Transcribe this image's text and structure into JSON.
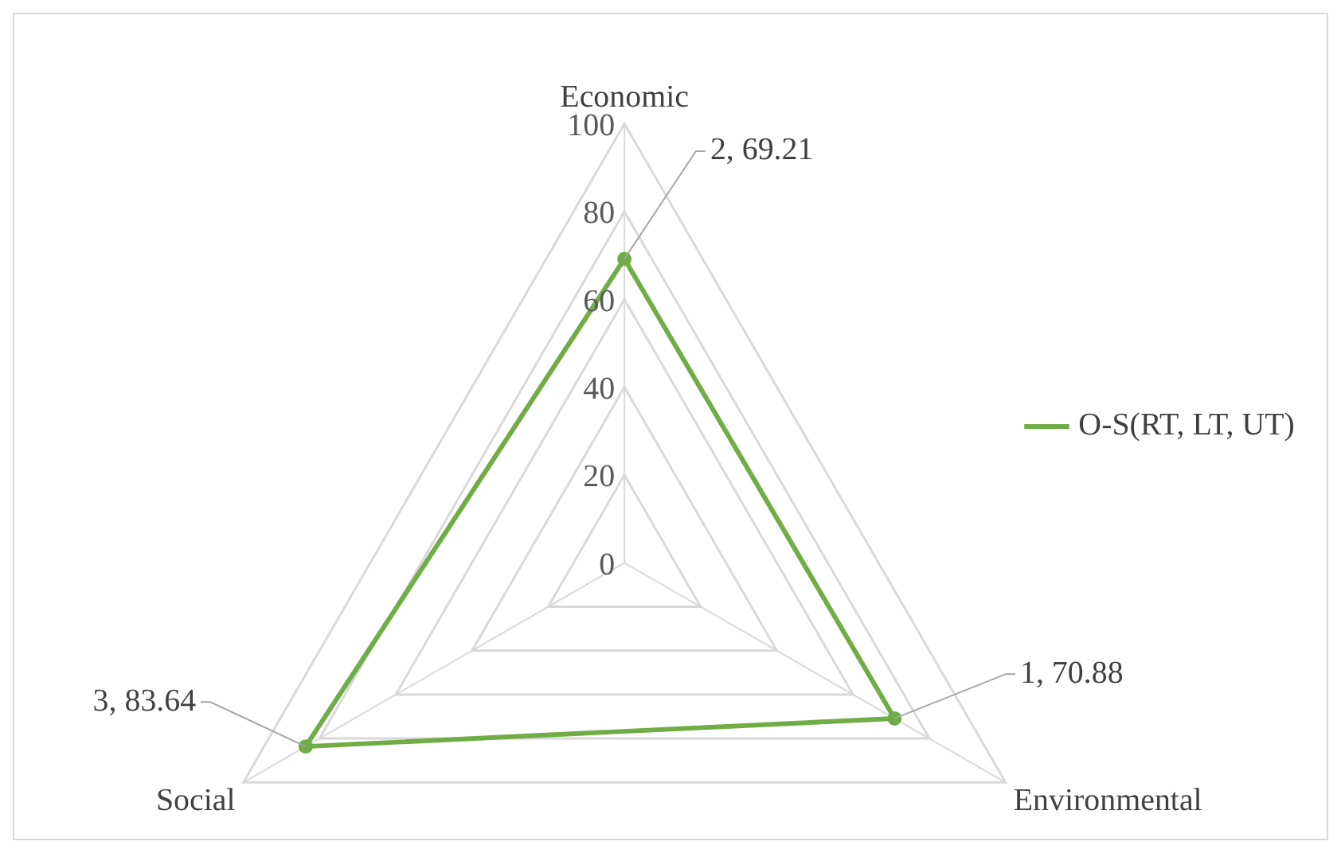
{
  "chart_data": {
    "type": "radar",
    "categories": [
      "Economic",
      "Environmental",
      "Social"
    ],
    "series": [
      {
        "name": "O-S(RT, LT, UT)",
        "color": "#70ad47",
        "values": [
          69.21,
          70.88,
          83.64
        ],
        "value_labels": [
          "2, 69.21",
          "1, 70.88",
          "3, 83.64"
        ]
      }
    ],
    "ylim": [
      0,
      100
    ],
    "yticks": [
      0,
      20,
      40,
      60,
      80,
      100
    ],
    "grid": true,
    "legend": "right",
    "marker": "circle",
    "line_style": "solid"
  }
}
